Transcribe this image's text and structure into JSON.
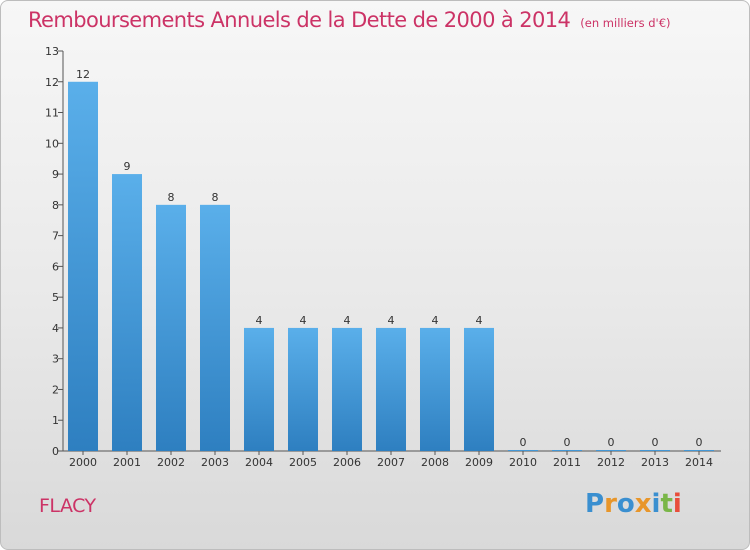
{
  "title": "Remboursements Annuels de la Dette de 2000 à 2014",
  "unit_note": "(en milliers d'€)",
  "commune": "FLACY",
  "logo": {
    "text": "Proxiti",
    "letters": [
      {
        "ch": "P",
        "color": "#3a8fd0"
      },
      {
        "ch": "r",
        "color": "#e8962a"
      },
      {
        "ch": "o",
        "color": "#3a8fd0"
      },
      {
        "ch": "x",
        "color": "#e8962a"
      },
      {
        "ch": "i",
        "color": "#3a8fd0"
      },
      {
        "ch": "t",
        "color": "#7ab648"
      },
      {
        "ch": "i",
        "color": "#e84d3a"
      }
    ]
  },
  "colors": {
    "title": "#cc3366",
    "bar_top": "#5aafea",
    "bar_bottom": "#2e7fc0"
  },
  "chart_data": {
    "type": "bar",
    "title": "Remboursements Annuels de la Dette de 2000 à 2014",
    "categories": [
      "2000",
      "2001",
      "2002",
      "2003",
      "2004",
      "2005",
      "2006",
      "2007",
      "2008",
      "2009",
      "2010",
      "2011",
      "2012",
      "2013",
      "2014"
    ],
    "values": [
      12,
      9,
      8,
      8,
      4,
      4,
      4,
      4,
      4,
      4,
      0,
      0,
      0,
      0,
      0
    ],
    "data_labels": [
      "12",
      "9",
      "8",
      "8",
      "4",
      "4",
      "4",
      "4",
      "4",
      "4",
      "0",
      "0",
      "0",
      "0",
      "0"
    ],
    "ylim": [
      0,
      13
    ],
    "yticks": [
      0,
      1,
      2,
      3,
      4,
      5,
      6,
      7,
      8,
      9,
      10,
      11,
      12,
      13
    ],
    "grid": false,
    "legend": "none"
  }
}
